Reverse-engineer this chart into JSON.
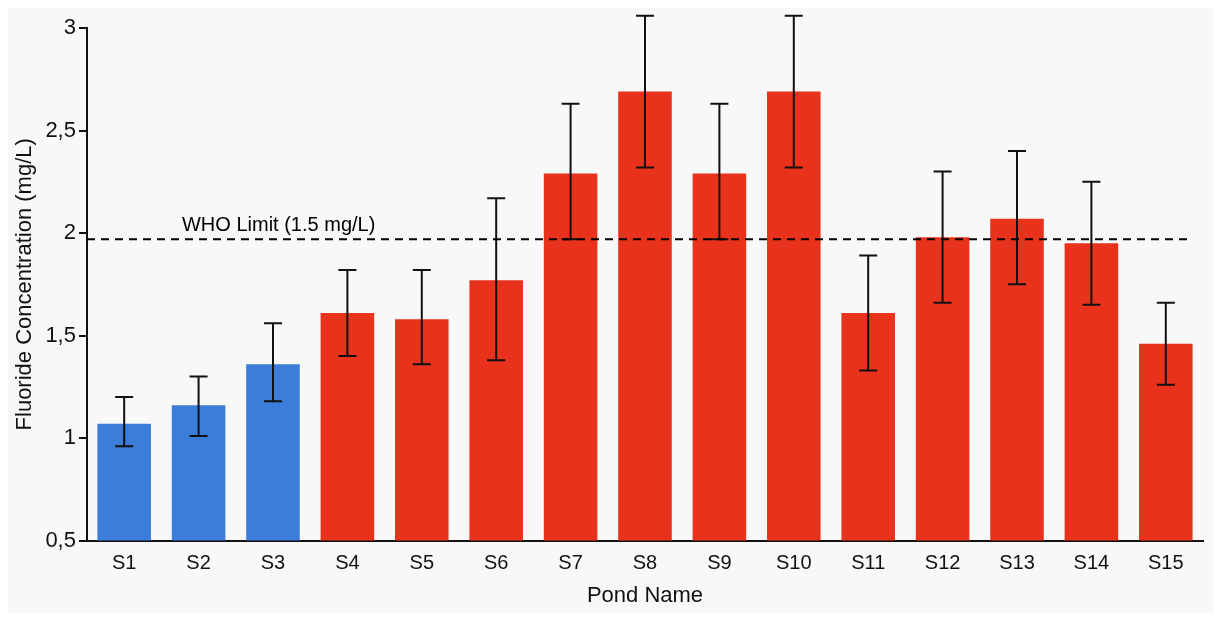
{
  "chart_data": {
    "type": "bar",
    "xlabel": "Pond Name",
    "ylabel": "Fluoride Concentration (mg/L)",
    "categories": [
      "S1",
      "S2",
      "S3",
      "S4",
      "S5",
      "S6",
      "S7",
      "S8",
      "S9",
      "S10",
      "S11",
      "S12",
      "S13",
      "S14",
      "S15"
    ],
    "values": [
      1.07,
      1.16,
      1.36,
      1.61,
      1.58,
      1.77,
      2.29,
      2.69,
      2.29,
      2.69,
      1.61,
      1.98,
      2.07,
      1.95,
      1.46
    ],
    "errors": [
      [
        0.96,
        1.2
      ],
      [
        1.01,
        1.3
      ],
      [
        1.18,
        1.56
      ],
      [
        1.4,
        1.82
      ],
      [
        1.36,
        1.82
      ],
      [
        1.38,
        2.17
      ],
      [
        1.97,
        2.63
      ],
      [
        2.32,
        3.06
      ],
      [
        1.97,
        2.63
      ],
      [
        2.32,
        3.06
      ],
      [
        1.33,
        1.89
      ],
      [
        1.66,
        2.3
      ],
      [
        1.75,
        2.4
      ],
      [
        1.65,
        2.25
      ],
      [
        1.26,
        1.66
      ]
    ],
    "colors": [
      "#3b7dd8",
      "#3b7dd8",
      "#3b7dd8",
      "#e8321c",
      "#e8321c",
      "#e8321c",
      "#e8321c",
      "#e8321c",
      "#e8321c",
      "#e8321c",
      "#e8321c",
      "#e8321c",
      "#e8321c",
      "#e8321c",
      "#e8321c"
    ],
    "ylim": [
      0.5,
      3
    ],
    "yticks": [
      {
        "value": 0.5,
        "label": "0,5"
      },
      1,
      {
        "value": 1.5,
        "label": "1,5"
      },
      2,
      {
        "value": 2.5,
        "label": "2,5"
      },
      3
    ],
    "ref_lines": [
      {
        "axis": "y",
        "value": 1.97,
        "label": "WHO Limit (1.5 mg/L)",
        "color": "#000000",
        "line_style": "dashed"
      }
    ],
    "grid": false,
    "legend": false
  }
}
